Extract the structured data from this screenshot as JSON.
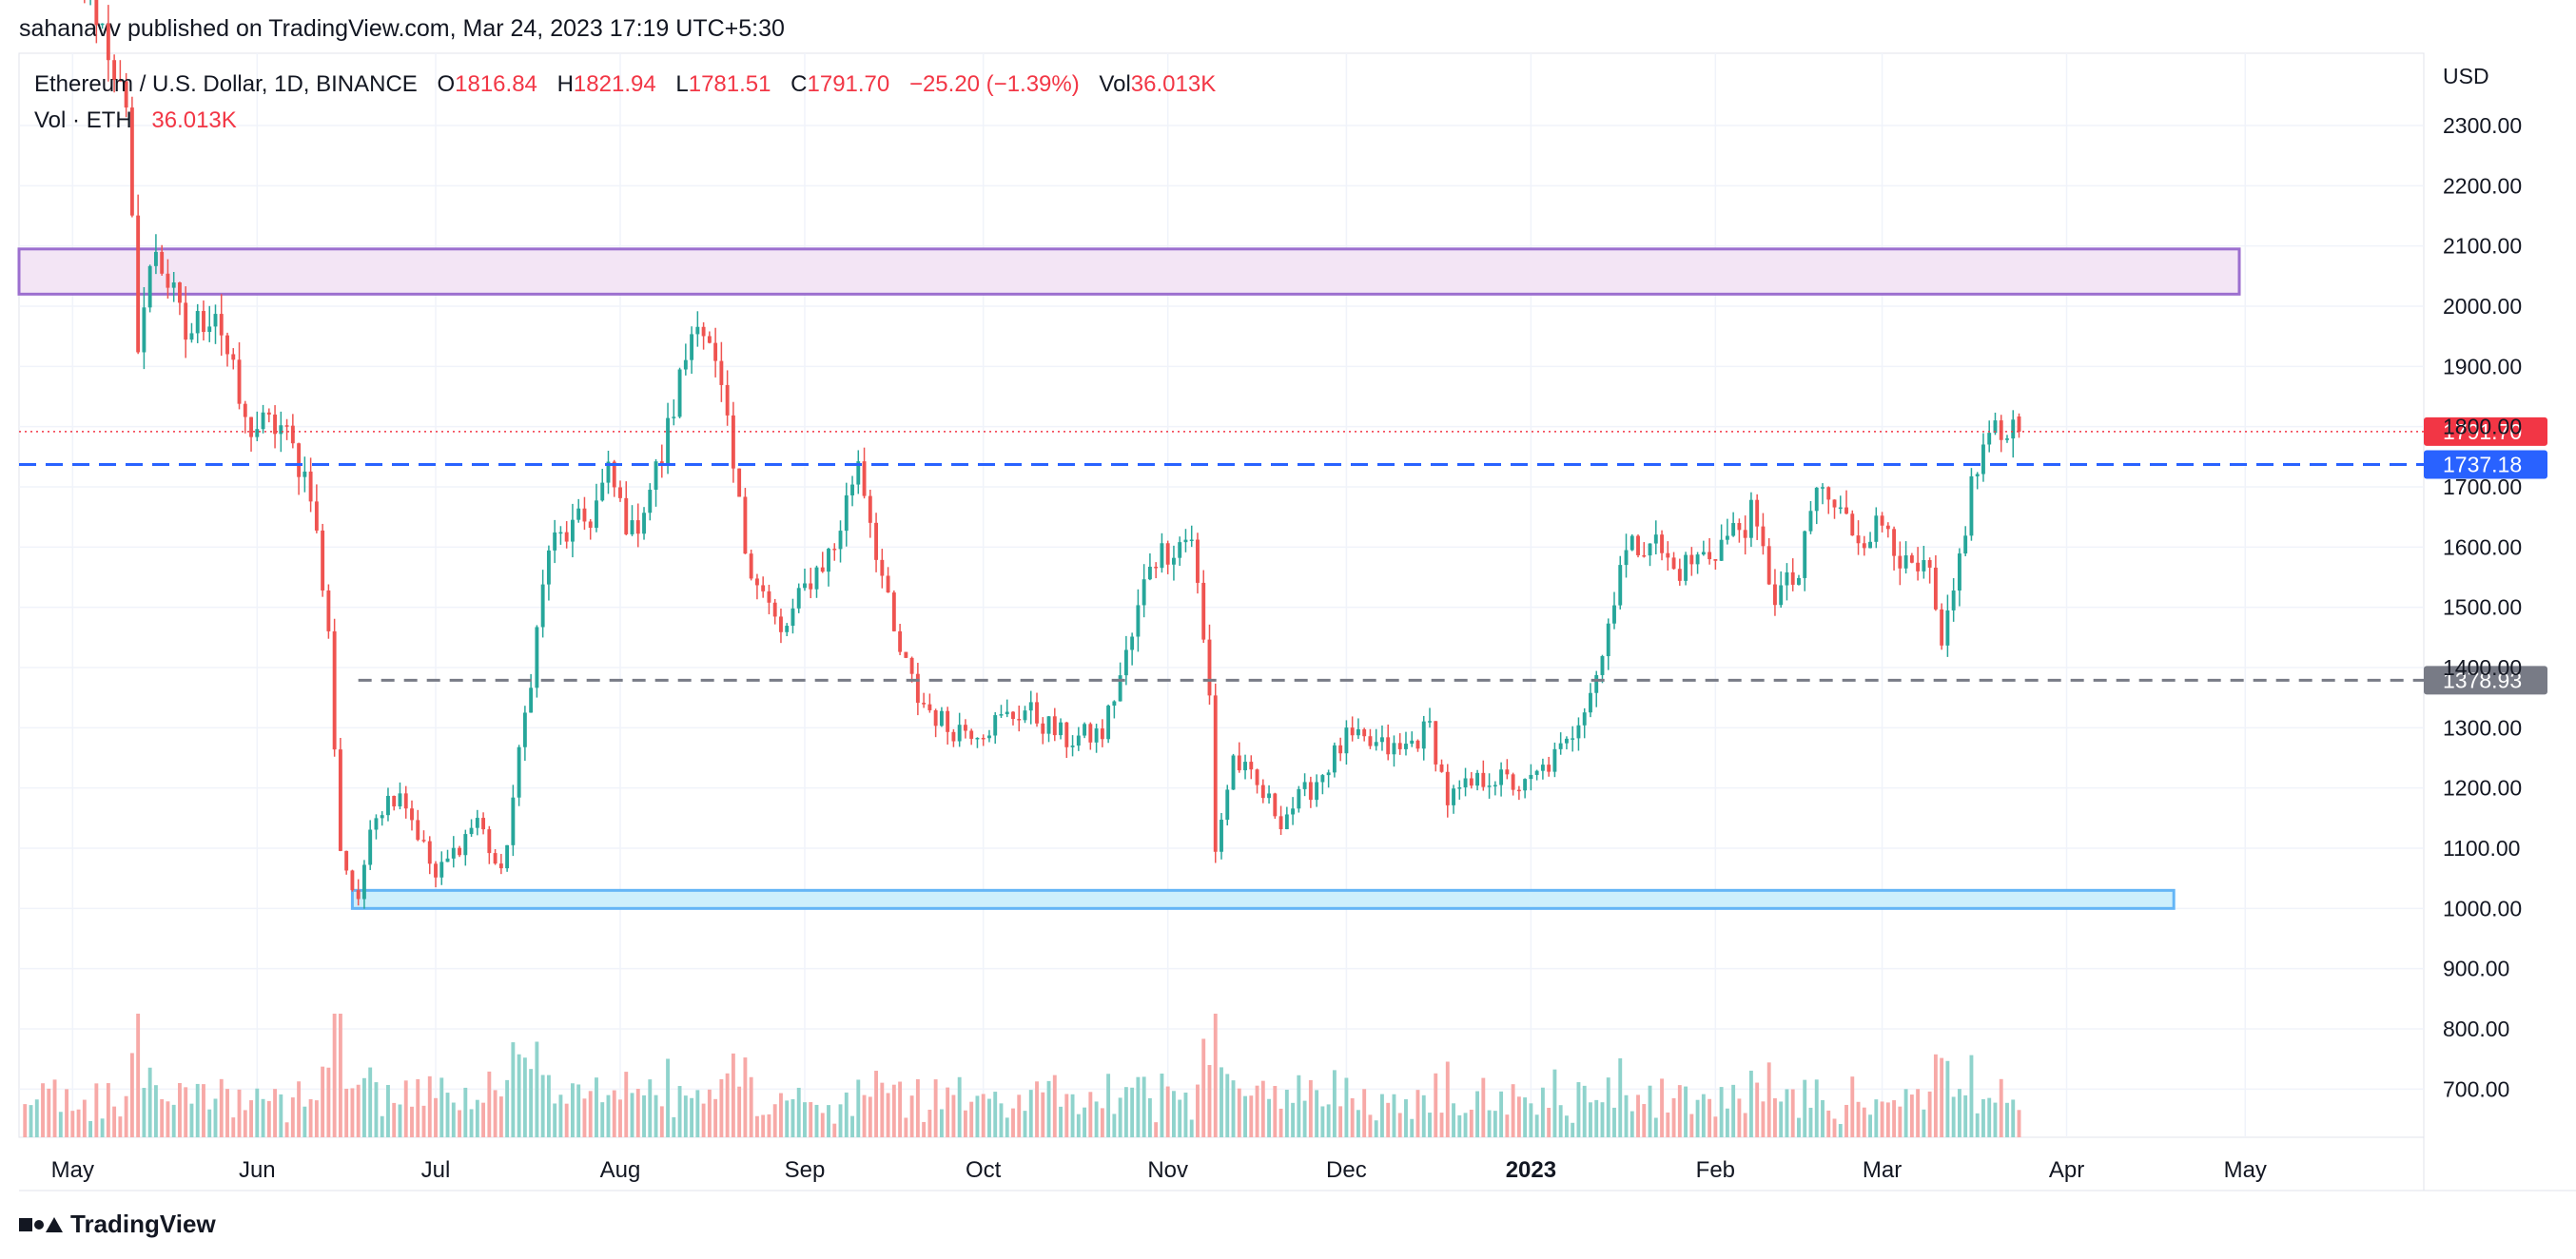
{
  "header": {
    "text": "sahanavv published on TradingView.com, Mar 24, 2023 17:19 UTC+5:30"
  },
  "legend": {
    "symbol": "Ethereum / U.S. Dollar, 1D, BINANCE",
    "o_label": "O",
    "o_value": "1816.84",
    "h_label": "H",
    "h_value": "1821.94",
    "l_label": "L",
    "l_value": "1781.51",
    "c_label": "C",
    "c_value": "1791.70",
    "change": "−25.20 (−1.39%)",
    "vol_label": "Vol",
    "vol_value": "36.013K",
    "vol_series_label": "Vol · ETH",
    "vol_series_value": "36.013K"
  },
  "footer": {
    "brand": "TradingView"
  },
  "colors": {
    "up": "#26a69a",
    "down": "#ef5350",
    "up_vol": "#8fd3cc",
    "down_vol": "#f7a9a7",
    "resistance_fill": "#f3e5f5",
    "resistance_border": "#9c6fcf",
    "support_fill": "#cdeffc",
    "support_border": "#64b5f6",
    "blue_line": "#2962ff",
    "gray_line": "#787b86",
    "price_line": "#f23645",
    "grid": "#f0f3fa"
  },
  "chart_data": {
    "type": "candlestick",
    "title": "Ethereum / U.S. Dollar, 1D, BINANCE",
    "yaxis_unit": "USD",
    "ylim": [
      620,
      2420
    ],
    "y_ticks": [
      "700.00",
      "800.00",
      "900.00",
      "1000.00",
      "1100.00",
      "1200.00",
      "1300.00",
      "1400.00",
      "1500.00",
      "1600.00",
      "1700.00",
      "1800.00",
      "1900.00",
      "2000.00",
      "2100.00",
      "2200.00",
      "2300.00"
    ],
    "x_start": "2022-04-22",
    "x_end": "2023-05-31",
    "x_ticks": [
      {
        "date": "2022-05-01",
        "label": "May",
        "bold": false
      },
      {
        "date": "2022-06-01",
        "label": "Jun",
        "bold": false
      },
      {
        "date": "2022-07-01",
        "label": "Jul",
        "bold": false
      },
      {
        "date": "2022-08-01",
        "label": "Aug",
        "bold": false
      },
      {
        "date": "2022-09-01",
        "label": "Sep",
        "bold": false
      },
      {
        "date": "2022-10-01",
        "label": "Oct",
        "bold": false
      },
      {
        "date": "2022-11-01",
        "label": "Nov",
        "bold": false
      },
      {
        "date": "2022-12-01",
        "label": "Dec",
        "bold": false
      },
      {
        "date": "2023-01-01",
        "label": "2023",
        "bold": true
      },
      {
        "date": "2023-02-01",
        "label": "Feb",
        "bold": false
      },
      {
        "date": "2023-03-01",
        "label": "Mar",
        "bold": false
      },
      {
        "date": "2023-04-01",
        "label": "Apr",
        "bold": false
      },
      {
        "date": "2023-05-01",
        "label": "May",
        "bold": false
      }
    ],
    "price_anchors": [
      [
        "2022-04-22",
        2900
      ],
      [
        "2022-05-08",
        2400
      ],
      [
        "2022-05-10",
        2300
      ],
      [
        "2022-05-12",
        1950
      ],
      [
        "2022-05-15",
        2100
      ],
      [
        "2022-05-20",
        1950
      ],
      [
        "2022-05-25",
        2000
      ],
      [
        "2022-05-30",
        1800
      ],
      [
        "2022-06-05",
        1800
      ],
      [
        "2022-06-10",
        1700
      ],
      [
        "2022-06-13",
        1450
      ],
      [
        "2022-06-15",
        1100
      ],
      [
        "2022-06-18",
        1000
      ],
      [
        "2022-06-20",
        1150
      ],
      [
        "2022-06-25",
        1200
      ],
      [
        "2022-07-01",
        1050
      ],
      [
        "2022-07-08",
        1150
      ],
      [
        "2022-07-12",
        1050
      ],
      [
        "2022-07-15",
        1250
      ],
      [
        "2022-07-20",
        1600
      ],
      [
        "2022-07-27",
        1650
      ],
      [
        "2022-07-30",
        1720
      ],
      [
        "2022-08-03",
        1620
      ],
      [
        "2022-08-08",
        1750
      ],
      [
        "2022-08-14",
        2000
      ],
      [
        "2022-08-18",
        1850
      ],
      [
        "2022-08-22",
        1600
      ],
      [
        "2022-08-28",
        1450
      ],
      [
        "2022-09-02",
        1550
      ],
      [
        "2022-09-06",
        1600
      ],
      [
        "2022-09-10",
        1750
      ],
      [
        "2022-09-13",
        1600
      ],
      [
        "2022-09-16",
        1450
      ],
      [
        "2022-09-20",
        1350
      ],
      [
        "2022-09-25",
        1300
      ],
      [
        "2022-10-01",
        1300
      ],
      [
        "2022-10-08",
        1330
      ],
      [
        "2022-10-15",
        1280
      ],
      [
        "2022-10-21",
        1290
      ],
      [
        "2022-10-26",
        1450
      ],
      [
        "2022-10-29",
        1580
      ],
      [
        "2022-11-05",
        1620
      ],
      [
        "2022-11-08",
        1350
      ],
      [
        "2022-11-09",
        1100
      ],
      [
        "2022-11-12",
        1250
      ],
      [
        "2022-11-20",
        1150
      ],
      [
        "2022-11-25",
        1200
      ],
      [
        "2022-12-01",
        1280
      ],
      [
        "2022-12-10",
        1260
      ],
      [
        "2022-12-15",
        1300
      ],
      [
        "2022-12-18",
        1180
      ],
      [
        "2022-12-25",
        1220
      ],
      [
        "2022-12-31",
        1200
      ],
      [
        "2023-01-07",
        1270
      ],
      [
        "2023-01-13",
        1420
      ],
      [
        "2023-01-16",
        1580
      ],
      [
        "2023-01-21",
        1620
      ],
      [
        "2023-01-25",
        1560
      ],
      [
        "2023-01-31",
        1590
      ],
      [
        "2023-02-07",
        1650
      ],
      [
        "2023-02-11",
        1520
      ],
      [
        "2023-02-15",
        1550
      ],
      [
        "2023-02-18",
        1700
      ],
      [
        "2023-02-25",
        1620
      ],
      [
        "2023-03-02",
        1640
      ],
      [
        "2023-03-05",
        1560
      ],
      [
        "2023-03-09",
        1550
      ],
      [
        "2023-03-11",
        1420
      ],
      [
        "2023-03-13",
        1520
      ],
      [
        "2023-03-16",
        1700
      ],
      [
        "2023-03-19",
        1790
      ],
      [
        "2023-03-21",
        1780
      ],
      [
        "2023-03-22",
        1810
      ],
      [
        "2023-03-24",
        1791.7
      ]
    ],
    "last_candle": {
      "open": 1816.84,
      "high": 1821.94,
      "low": 1781.51,
      "close": 1791.7
    },
    "zones": [
      {
        "name": "resistance-zone",
        "from": "2022-04-22",
        "to": "2023-04-30",
        "low": 2020,
        "high": 2095
      },
      {
        "name": "support-zone",
        "from": "2022-06-17",
        "to": "2023-04-19",
        "low": 1000,
        "high": 1030
      }
    ],
    "levels": [
      {
        "name": "blue-level",
        "price": 1737.18,
        "label": "1737.18",
        "from": "2022-04-22"
      },
      {
        "name": "gray-level",
        "price": 1378.93,
        "label": "1378.93",
        "from": "2022-06-18"
      },
      {
        "name": "last-price",
        "price": 1791.7,
        "label": "1791.70",
        "from": "2022-04-22"
      }
    ],
    "volume": {
      "series": "Vol · ETH",
      "last": "36.013K"
    }
  }
}
